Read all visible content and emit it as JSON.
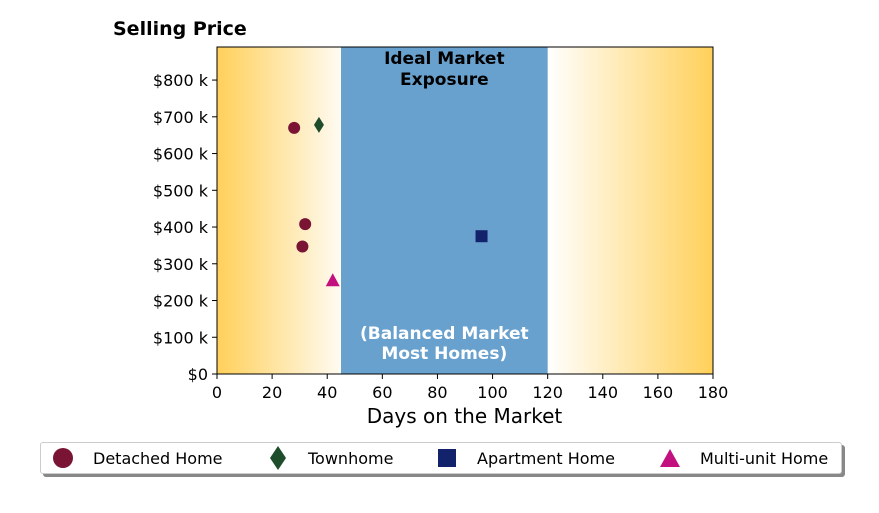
{
  "chart_data": {
    "type": "scatter",
    "title": "Selling Price",
    "xlabel": "Days on the Market",
    "ylabel": "",
    "xlim": [
      0,
      180
    ],
    "ylim": [
      0,
      890000
    ],
    "x_ticks": [
      0,
      20,
      40,
      60,
      80,
      100,
      120,
      140,
      160,
      180
    ],
    "x_tick_labels": [
      "0",
      "20",
      "40",
      "60",
      "80",
      "100",
      "120",
      "140",
      "160",
      "180"
    ],
    "y_ticks": [
      0,
      100000,
      200000,
      300000,
      400000,
      500000,
      600000,
      700000,
      800000
    ],
    "y_tick_labels": [
      "$0",
      "$100 k",
      "$200 k",
      "$300 k",
      "$400 k",
      "$500 k",
      "$600 k",
      "$700 k",
      "$800 k"
    ],
    "grid": false,
    "ideal_band": {
      "x_range": [
        45,
        120
      ],
      "label_top_lines": [
        "Ideal Market",
        "Exposure"
      ],
      "label_bottom_lines": [
        "(Balanced Market",
        "Most Homes)"
      ]
    },
    "series": [
      {
        "name": "Detached Home",
        "marker": "circle",
        "color": "#7a1435",
        "points": [
          {
            "x": 28,
            "y": 670000
          },
          {
            "x": 32,
            "y": 408000
          },
          {
            "x": 31,
            "y": 347000
          }
        ]
      },
      {
        "name": "Townhome",
        "marker": "diamond",
        "color": "#1e4d2b",
        "points": [
          {
            "x": 37,
            "y": 678000
          }
        ]
      },
      {
        "name": "Apartment Home",
        "marker": "square",
        "color": "#12226b",
        "points": [
          {
            "x": 96,
            "y": 375000
          }
        ]
      },
      {
        "name": "Multi-unit Home",
        "marker": "triangle",
        "color": "#c2107f",
        "points": [
          {
            "x": 42,
            "y": 255000
          }
        ]
      }
    ],
    "legend_position": "bottom"
  }
}
